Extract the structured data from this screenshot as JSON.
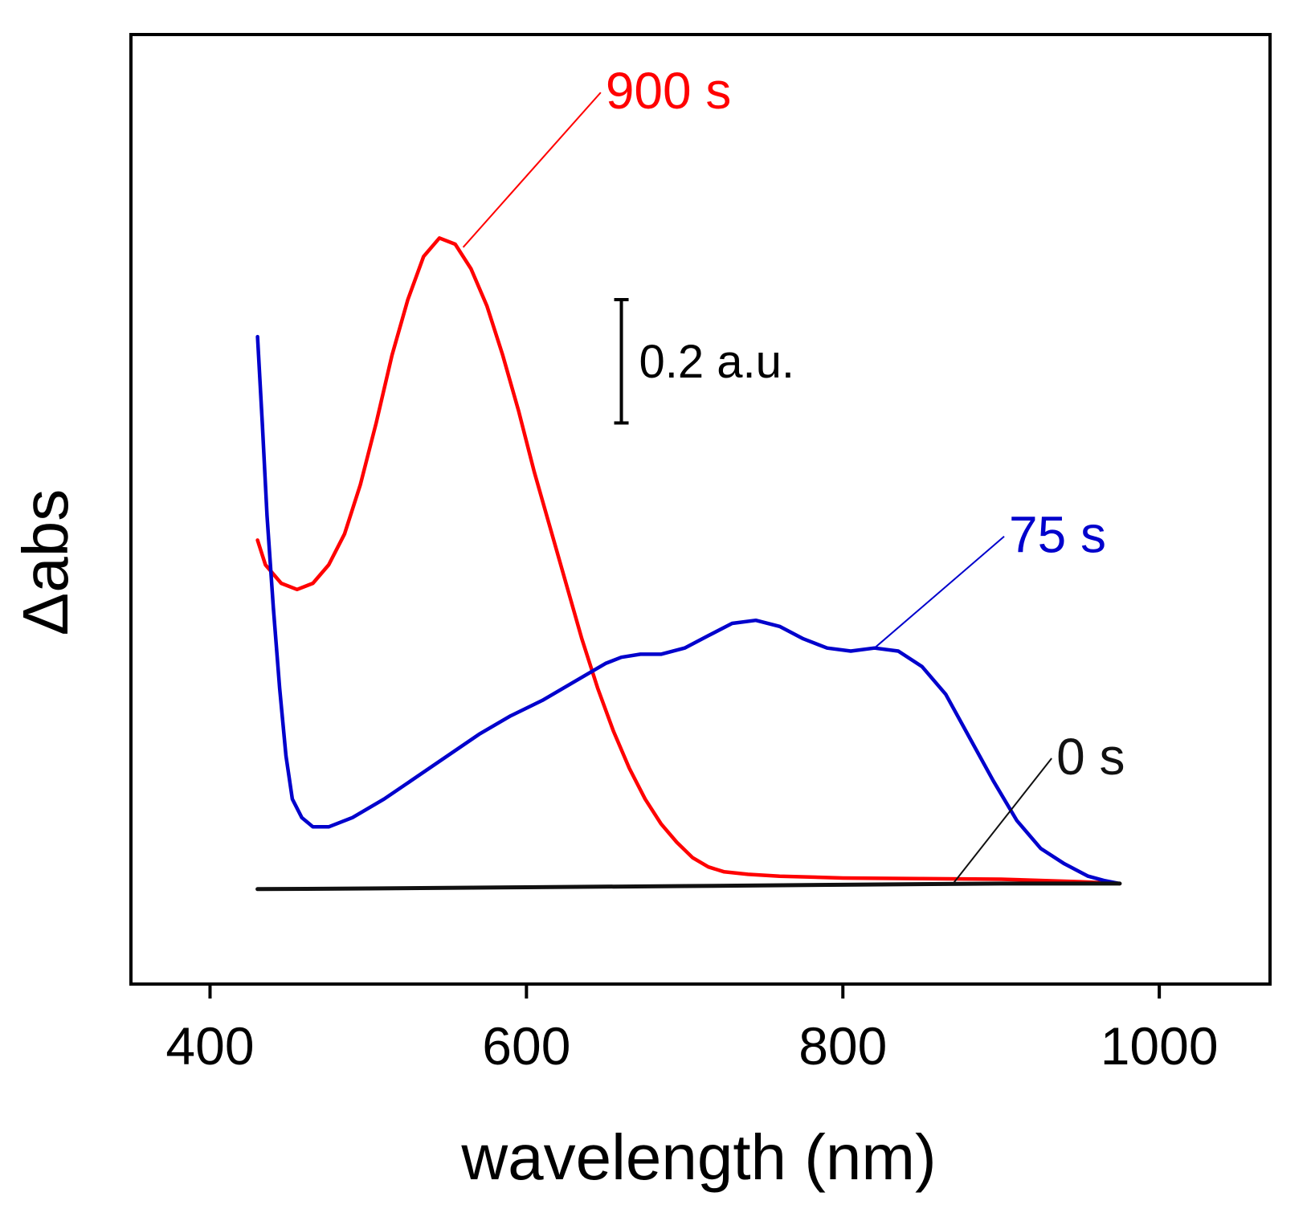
{
  "chart_data": {
    "type": "line",
    "title": "",
    "xlabel": "wavelength (nm)",
    "ylabel": "Δabs",
    "xlim": [
      350,
      1070
    ],
    "ylim": [
      -0.16,
      1.38
    ],
    "x_ticks": [
      "400",
      "600",
      "800",
      "1000"
    ],
    "y_ticks": [],
    "grid": false,
    "legend": "none",
    "scale_bar": {
      "label": "0.2 a.u.",
      "value": 0.2,
      "x": 660,
      "y_bottom": 0.75
    },
    "series": [
      {
        "name": "900 s",
        "color": "#ff0000",
        "points": [
          [
            430,
            0.56
          ],
          [
            435,
            0.52
          ],
          [
            445,
            0.49
          ],
          [
            455,
            0.48
          ],
          [
            465,
            0.49
          ],
          [
            475,
            0.52
          ],
          [
            485,
            0.57
          ],
          [
            495,
            0.65
          ],
          [
            505,
            0.75
          ],
          [
            515,
            0.86
          ],
          [
            525,
            0.95
          ],
          [
            535,
            1.02
          ],
          [
            545,
            1.05
          ],
          [
            555,
            1.04
          ],
          [
            565,
            1.0
          ],
          [
            575,
            0.94
          ],
          [
            585,
            0.86
          ],
          [
            595,
            0.77
          ],
          [
            605,
            0.67
          ],
          [
            615,
            0.58
          ],
          [
            625,
            0.49
          ],
          [
            635,
            0.4
          ],
          [
            645,
            0.32
          ],
          [
            655,
            0.25
          ],
          [
            665,
            0.19
          ],
          [
            675,
            0.14
          ],
          [
            685,
            0.1
          ],
          [
            695,
            0.07
          ],
          [
            705,
            0.045
          ],
          [
            715,
            0.03
          ],
          [
            725,
            0.022
          ],
          [
            740,
            0.018
          ],
          [
            760,
            0.015
          ],
          [
            800,
            0.012
          ],
          [
            850,
            0.011
          ],
          [
            900,
            0.01
          ],
          [
            950,
            0.006
          ],
          [
            975,
            0.003
          ]
        ]
      },
      {
        "name": "75 s",
        "color": "#0000cc",
        "points": [
          [
            430,
            0.89
          ],
          [
            433,
            0.75
          ],
          [
            436,
            0.6
          ],
          [
            440,
            0.45
          ],
          [
            444,
            0.32
          ],
          [
            448,
            0.21
          ],
          [
            452,
            0.14
          ],
          [
            458,
            0.11
          ],
          [
            465,
            0.095
          ],
          [
            475,
            0.095
          ],
          [
            490,
            0.11
          ],
          [
            510,
            0.14
          ],
          [
            530,
            0.175
          ],
          [
            550,
            0.21
          ],
          [
            570,
            0.245
          ],
          [
            590,
            0.275
          ],
          [
            610,
            0.3
          ],
          [
            630,
            0.33
          ],
          [
            650,
            0.36
          ],
          [
            660,
            0.37
          ],
          [
            672,
            0.375
          ],
          [
            685,
            0.375
          ],
          [
            700,
            0.385
          ],
          [
            715,
            0.405
          ],
          [
            730,
            0.425
          ],
          [
            745,
            0.43
          ],
          [
            760,
            0.42
          ],
          [
            775,
            0.4
          ],
          [
            790,
            0.385
          ],
          [
            805,
            0.38
          ],
          [
            820,
            0.385
          ],
          [
            835,
            0.38
          ],
          [
            850,
            0.355
          ],
          [
            865,
            0.31
          ],
          [
            880,
            0.24
          ],
          [
            895,
            0.17
          ],
          [
            910,
            0.105
          ],
          [
            925,
            0.06
          ],
          [
            940,
            0.035
          ],
          [
            955,
            0.015
          ],
          [
            965,
            0.008
          ],
          [
            975,
            0.003
          ]
        ]
      },
      {
        "name": "0 s",
        "color": "#111111",
        "points": [
          [
            430,
            -0.006
          ],
          [
            500,
            -0.005
          ],
          [
            600,
            -0.003
          ],
          [
            700,
            -0.001
          ],
          [
            800,
            0.001
          ],
          [
            900,
            0.003
          ],
          [
            975,
            0.003
          ]
        ]
      }
    ],
    "annotations": [
      {
        "text": "900 s",
        "color": "#ff0000",
        "text_x": 650,
        "text_y": 1.26,
        "point_x": 560,
        "point_y": 1.035
      },
      {
        "text": "75 s",
        "color": "#0000cc",
        "text_x": 905,
        "text_y": 0.54,
        "point_x": 820,
        "point_y": 0.385
      },
      {
        "text": "0 s",
        "color": "#111111",
        "text_x": 935,
        "text_y": 0.18,
        "point_x": 870,
        "point_y": 0.004
      }
    ]
  }
}
